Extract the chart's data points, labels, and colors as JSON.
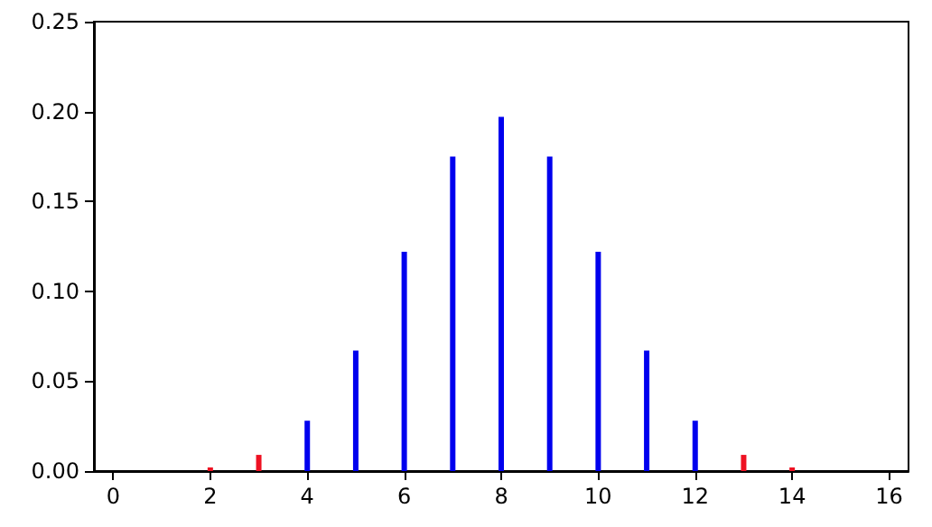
{
  "chart_data": {
    "type": "bar",
    "xlim": [
      -0.4,
      16.4
    ],
    "xticks": [
      0,
      2,
      4,
      6,
      8,
      10,
      12,
      14,
      16
    ],
    "ylim": [
      0,
      0.25
    ],
    "grid": false,
    "yticks": [
      {
        "value": 0,
        "label": "0.00"
      },
      0.05,
      {
        "value": 0.1,
        "label": "0.10"
      },
      0.15,
      {
        "value": 0.2,
        "label": "0.20"
      },
      0.25
    ],
    "series": [
      {
        "color": "#ee1122",
        "x": [
          0,
          1,
          2,
          3,
          13,
          14,
          15,
          16
        ],
        "values": [
          0,
          0,
          0.002,
          0.009,
          0.009,
          0.002,
          0,
          0
        ]
      },
      {
        "color": "#0000ee",
        "x": [
          4,
          5,
          6,
          7,
          8,
          9,
          10,
          11,
          12
        ],
        "values": [
          0.028,
          0.067,
          0.122,
          0.175,
          0.197,
          0.175,
          0.122,
          0.067,
          0.028
        ]
      }
    ]
  }
}
